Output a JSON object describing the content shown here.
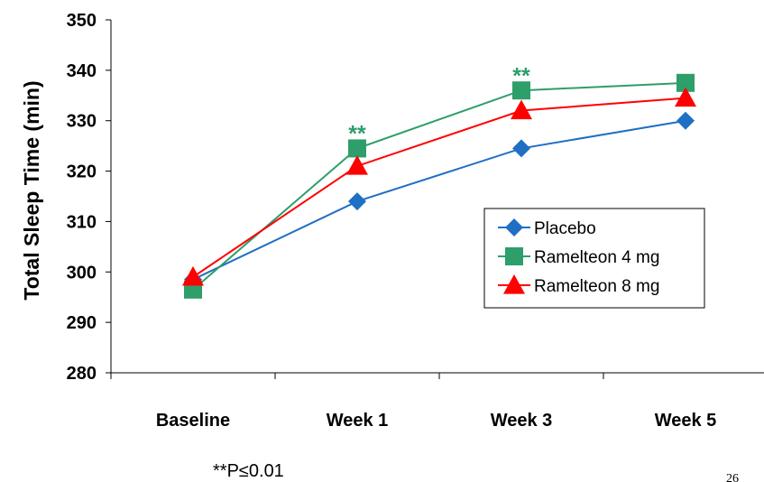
{
  "chart_data": {
    "type": "line",
    "categories": [
      "Baseline",
      "Week 1",
      "Week 3",
      "Week 5"
    ],
    "ylabel": "Total Sleep Time (min)",
    "ylim": [
      280,
      350
    ],
    "yticks": [
      280,
      290,
      300,
      310,
      320,
      330,
      340,
      350
    ],
    "grid": false,
    "legend_position": "right",
    "series": [
      {
        "name": "Placebo",
        "values": [
          298.5,
          314,
          324.5,
          330
        ],
        "color": "#1f6fc4",
        "marker": "diamond"
      },
      {
        "name": "Ramelteon 4 mg",
        "values": [
          296.5,
          324.5,
          336,
          337.5
        ],
        "color": "#2e9e6b",
        "marker": "square"
      },
      {
        "name": "Ramelteon 8 mg",
        "values": [
          299,
          321,
          332,
          334.5
        ],
        "color": "#ff0000",
        "marker": "triangle"
      }
    ],
    "annotations": [
      {
        "text": "**",
        "category_index": 1,
        "value": 327.5
      },
      {
        "text": "**",
        "category_index": 2,
        "value": 339
      }
    ],
    "annotation_color": "#2e9e6b",
    "footnote": "**P≤0.01",
    "page_number": "26"
  }
}
